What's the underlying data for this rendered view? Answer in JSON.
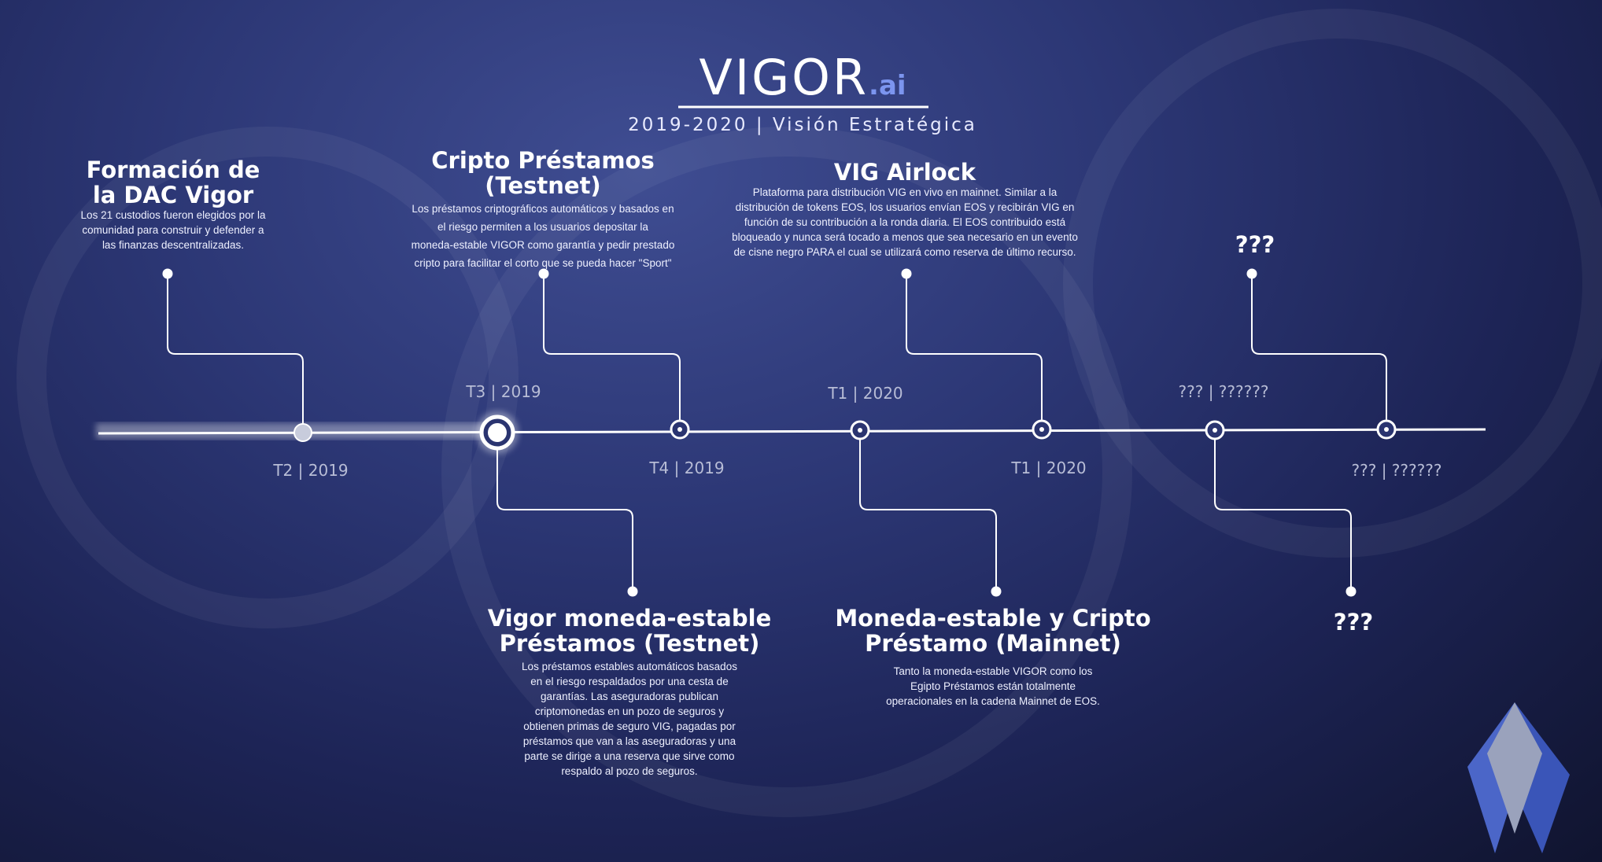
{
  "header": {
    "logo_main": "VIGOR",
    "logo_suffix": ".ai",
    "subtitle": "2019-2020 | Visión Estratégica"
  },
  "milestones": [
    {
      "title": "Formación de\nla DAC Vigor",
      "description": "Los 21 custodios fueron elegidos por la\ncomunidad para construir y defender a\nlas finanzas descentralizadas."
    },
    {
      "title": "Vigor moneda-estable\nPréstamos (Testnet)",
      "description": "Los préstamos estables automáticos basados\nen el riesgo respaldados por una cesta de\ngarantías. Las aseguradoras publican\ncriptomonedas en un pozo de seguros y\nobtienen primas de seguro VIG, pagadas por\npréstamos que van a las aseguradoras y una\nparte se dirige a una reserva que sirve como\nrespaldo al pozo de seguros."
    },
    {
      "title": "Cripto Préstamos\n(Testnet)",
      "description": "Los préstamos criptográficos automáticos y basados en\nel riesgo permiten a los usuarios depositar la\nmoneda-estable VIGOR como garantía y pedir prestado\ncripto para facilitar el corto que se pueda hacer \"Sport\""
    },
    {
      "title": "Moneda-estable y Cripto\nPréstamo (Mainnet)",
      "description": "Tanto la moneda-estable VIGOR como los\nEgipto Préstamos están totalmente\noperacionales en la cadena Mainnet de EOS."
    },
    {
      "title": "VIG Airlock",
      "description": "Plataforma para distribución VIG en vivo en mainnet. Similar a la\ndistribución de tokens EOS, los usuarios envían EOS y recibirán VIG en\nfunción de su contribución a la ronda diaria. El EOS contribuido está\nbloqueado y nunca será tocado a menos que sea necesario en un evento\nde cisne negro PARA el cual se utilizará como reserva de último recurso."
    },
    {
      "title": "???",
      "description": ""
    },
    {
      "title": "???",
      "description": ""
    }
  ],
  "dates": [
    "T2 | 2019",
    "T3 | 2019",
    "T4 | 2019",
    "T1 | 2020",
    "T1 | 2020",
    "??? | ??????",
    "??? | ??????"
  ],
  "colors": {
    "accent": "#7c95ef",
    "line": "#ffffff",
    "date_text": "#b8bdd6"
  }
}
